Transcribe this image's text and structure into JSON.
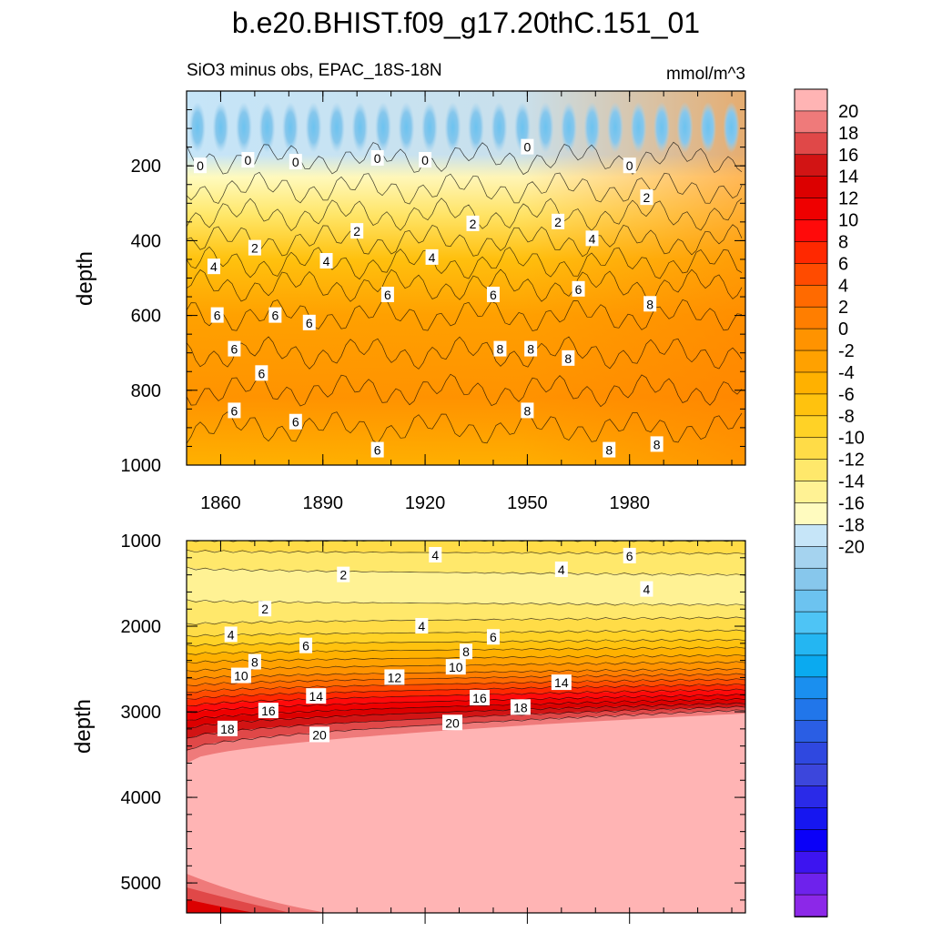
{
  "chart_data": [
    {
      "type": "contour",
      "panel": "upper",
      "title": "b.e20.BHIST.f09_g17.20thC.151_01",
      "left_subtitle": "SiO3 minus obs, EPAC_18S-18N",
      "right_subtitle": "mmol/m^3",
      "xlabel": "",
      "ylabel": "depth",
      "xlim": [
        1850,
        2014
      ],
      "ylim": [
        1000,
        0
      ],
      "xticks": [
        1860,
        1890,
        1920,
        1950,
        1980
      ],
      "xtick_labels": [
        "1860",
        "1890",
        "1920",
        "1950",
        "1980"
      ],
      "yticks": [
        200,
        400,
        600,
        800,
        1000
      ],
      "ytick_labels": [
        "200",
        "400",
        "600",
        "800",
        "1000"
      ],
      "contour_labels": [
        {
          "x": 1854,
          "depth": 200,
          "text": "0"
        },
        {
          "x": 1868,
          "depth": 185,
          "text": "0"
        },
        {
          "x": 1882,
          "depth": 190,
          "text": "0"
        },
        {
          "x": 1906,
          "depth": 180,
          "text": "0"
        },
        {
          "x": 1920,
          "depth": 185,
          "text": "0"
        },
        {
          "x": 1950,
          "depth": 150,
          "text": "0"
        },
        {
          "x": 1980,
          "depth": 200,
          "text": "0"
        },
        {
          "x": 1985,
          "depth": 285,
          "text": "2"
        },
        {
          "x": 1900,
          "depth": 375,
          "text": "2"
        },
        {
          "x": 1870,
          "depth": 420,
          "text": "2"
        },
        {
          "x": 1934,
          "depth": 355,
          "text": "2"
        },
        {
          "x": 1959,
          "depth": 350,
          "text": "2"
        },
        {
          "x": 1858,
          "depth": 470,
          "text": "4"
        },
        {
          "x": 1891,
          "depth": 455,
          "text": "4"
        },
        {
          "x": 1922,
          "depth": 445,
          "text": "4"
        },
        {
          "x": 1969,
          "depth": 395,
          "text": "4"
        },
        {
          "x": 1909,
          "depth": 545,
          "text": "6"
        },
        {
          "x": 1940,
          "depth": 545,
          "text": "6"
        },
        {
          "x": 1965,
          "depth": 530,
          "text": "6"
        },
        {
          "x": 1859,
          "depth": 600,
          "text": "6"
        },
        {
          "x": 1876,
          "depth": 600,
          "text": "6"
        },
        {
          "x": 1886,
          "depth": 620,
          "text": "6"
        },
        {
          "x": 1864,
          "depth": 690,
          "text": "6"
        },
        {
          "x": 1872,
          "depth": 755,
          "text": "6"
        },
        {
          "x": 1864,
          "depth": 855,
          "text": "6"
        },
        {
          "x": 1882,
          "depth": 885,
          "text": "6"
        },
        {
          "x": 1906,
          "depth": 960,
          "text": "6"
        },
        {
          "x": 1942,
          "depth": 690,
          "text": "8"
        },
        {
          "x": 1951,
          "depth": 690,
          "text": "8"
        },
        {
          "x": 1962,
          "depth": 715,
          "text": "8"
        },
        {
          "x": 1950,
          "depth": 855,
          "text": "8"
        },
        {
          "x": 1986,
          "depth": 570,
          "text": "8"
        },
        {
          "x": 1974,
          "depth": 960,
          "text": "8"
        },
        {
          "x": 1988,
          "depth": 945,
          "text": "8"
        }
      ]
    },
    {
      "type": "contour",
      "panel": "lower",
      "xlabel": "",
      "ylabel": "depth",
      "xlim": [
        1850,
        2014
      ],
      "ylim": [
        5350,
        1000
      ],
      "yticks": [
        1000,
        2000,
        3000,
        4000,
        5000
      ],
      "ytick_labels": [
        "1000",
        "2000",
        "3000",
        "4000",
        "5000"
      ],
      "contour_labels": [
        {
          "x": 1923,
          "depth": 1170,
          "text": "4"
        },
        {
          "x": 1980,
          "depth": 1180,
          "text": "6"
        },
        {
          "x": 1896,
          "depth": 1400,
          "text": "2"
        },
        {
          "x": 1960,
          "depth": 1340,
          "text": "4"
        },
        {
          "x": 1985,
          "depth": 1570,
          "text": "4"
        },
        {
          "x": 1873,
          "depth": 1800,
          "text": "2"
        },
        {
          "x": 1919,
          "depth": 2000,
          "text": "4"
        },
        {
          "x": 1863,
          "depth": 2100,
          "text": "4"
        },
        {
          "x": 1885,
          "depth": 2230,
          "text": "6"
        },
        {
          "x": 1940,
          "depth": 2130,
          "text": "6"
        },
        {
          "x": 1932,
          "depth": 2300,
          "text": "8"
        },
        {
          "x": 1870,
          "depth": 2420,
          "text": "8"
        },
        {
          "x": 1929,
          "depth": 2480,
          "text": "10"
        },
        {
          "x": 1866,
          "depth": 2580,
          "text": "10"
        },
        {
          "x": 1911,
          "depth": 2600,
          "text": "12"
        },
        {
          "x": 1960,
          "depth": 2660,
          "text": "14"
        },
        {
          "x": 1888,
          "depth": 2820,
          "text": "14"
        },
        {
          "x": 1874,
          "depth": 2990,
          "text": "16"
        },
        {
          "x": 1936,
          "depth": 2840,
          "text": "16"
        },
        {
          "x": 1948,
          "depth": 2950,
          "text": "18"
        },
        {
          "x": 1862,
          "depth": 3200,
          "text": "18"
        },
        {
          "x": 1889,
          "depth": 3270,
          "text": "20"
        },
        {
          "x": 1928,
          "depth": 3130,
          "text": "20"
        }
      ]
    }
  ],
  "colorbar": {
    "levels": [
      20,
      18,
      16,
      14,
      12,
      10,
      8,
      6,
      4,
      2,
      0,
      -2,
      -4,
      -6,
      -8,
      -10,
      -12,
      -14,
      -16,
      -18,
      -20
    ],
    "labels": [
      "20",
      "18",
      "16",
      "14",
      "12",
      "10",
      "8",
      "6",
      "4",
      "2",
      "0",
      "-2",
      "-4",
      "-6",
      "-8",
      "-10",
      "-12",
      "-14",
      "-16",
      "-18",
      "-20"
    ],
    "colors": [
      "#ffb4b4",
      "#ef7a7a",
      "#e04848",
      "#d21414",
      "#dc0000",
      "#ef0000",
      "#ff0a0a",
      "#ff2800",
      "#ff4b00",
      "#ff6a00",
      "#ff7e00",
      "#ff9300",
      "#ffa100",
      "#ffb100",
      "#ffc20e",
      "#ffd226",
      "#ffdc47",
      "#ffe86b",
      "#fff294",
      "#fffbbf",
      "#c6e5f8",
      "#a5d3ef",
      "#87c7ec",
      "#6cc3f0",
      "#4ec4f5",
      "#24b6f2",
      "#0aaaf0",
      "#1a8fef",
      "#2176ea",
      "#2a5ee4",
      "#2f48e0",
      "#3c46dc",
      "#2a2ae8",
      "#1616f0",
      "#0a00f8",
      "#3d14f0",
      "#6e22ec",
      "#8c28e8"
    ]
  }
}
